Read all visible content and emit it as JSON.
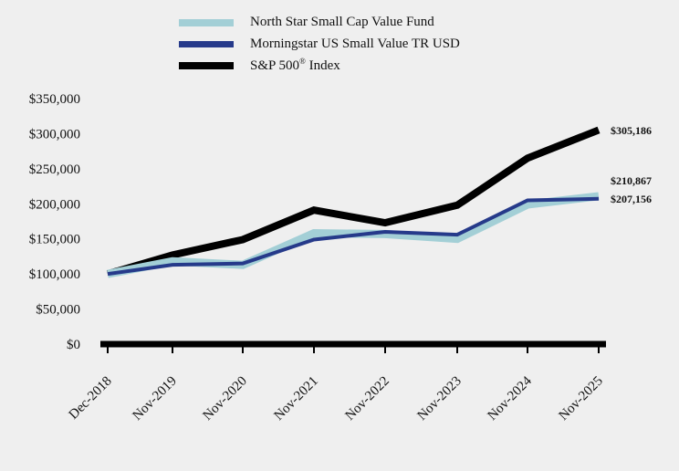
{
  "chart_data": {
    "type": "line",
    "categories": [
      "Dec-2018",
      "Nov-2019",
      "Nov-2020",
      "Nov-2021",
      "Nov-2022",
      "Nov-2023",
      "Nov-2024",
      "Nov-2025"
    ],
    "series": [
      {
        "name": "North Star Small Cap Value Fund",
        "color": "#a3cfd6",
        "values": [
          100000,
          118000,
          113000,
          158000,
          157000,
          150000,
          199000,
          210867
        ],
        "end_label": "$210,867"
      },
      {
        "name": "Morningstar US Small Value TR USD",
        "color": "#263a8a",
        "values": [
          100000,
          113000,
          115000,
          149000,
          160000,
          156000,
          205000,
          207156
        ],
        "end_label": "$207,156"
      },
      {
        "name": "S&P 500",
        "name_suffix": "® Index",
        "color": "#000000",
        "values": [
          100000,
          127000,
          149000,
          191000,
          173000,
          198000,
          265000,
          305186
        ],
        "end_label": "$305,186"
      }
    ],
    "yticks": [
      "$0",
      "$50,000",
      "$100,000",
      "$150,000",
      "$200,000",
      "$250,000",
      "$300,000",
      "$350,000"
    ],
    "ylim": [
      0,
      350000
    ],
    "title": "",
    "xlabel": "",
    "ylabel": "",
    "grid": false,
    "legend_position": "top-left"
  }
}
